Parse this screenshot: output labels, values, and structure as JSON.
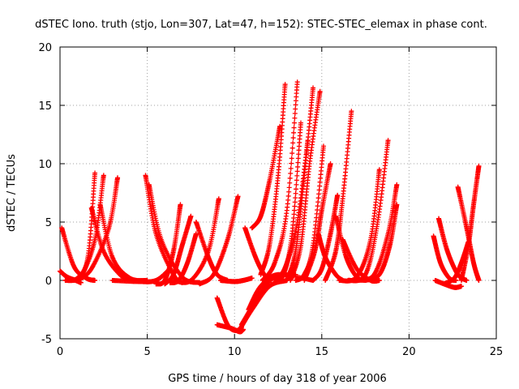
{
  "chart_data": {
    "type": "scatter",
    "title": "dSTEC Iono. truth (stjo, Lon=307, Lat=47, h=152): STEC-STEC_elemax in phase cont.",
    "xlabel": "GPS time / hours of day 318 of year 2006",
    "ylabel": "dSTEC  / TECUs",
    "xlim": [
      0,
      25
    ],
    "ylim": [
      -5,
      20
    ],
    "xticks": [
      "0",
      "5",
      "10",
      "15",
      "20",
      "25"
    ],
    "yticks": [
      "-5",
      "0",
      "5",
      "10",
      "15",
      "20"
    ],
    "grid": true,
    "marker": "plus",
    "color": "#ff0000",
    "series": [
      {
        "x": [
          0.0,
          0.4,
          0.9,
          1.2
        ],
        "y": [
          0.8,
          0.3,
          0.0,
          -0.2
        ]
      },
      {
        "x": [
          0.1,
          0.8,
          1.5,
          2.0
        ],
        "y": [
          4.5,
          1.2,
          0.2,
          0.0
        ]
      },
      {
        "x": [
          0.3,
          1.0,
          1.6,
          2.0
        ],
        "y": [
          0.0,
          0.2,
          2.0,
          9.2
        ]
      },
      {
        "x": [
          0.5,
          1.2,
          2.0,
          2.5
        ],
        "y": [
          0.0,
          0.4,
          3.5,
          9.0
        ]
      },
      {
        "x": [
          1.0,
          1.8,
          2.8,
          3.3
        ],
        "y": [
          0.0,
          1.0,
          4.5,
          8.8
        ]
      },
      {
        "x": [
          1.8,
          2.5,
          3.5,
          4.3
        ],
        "y": [
          6.2,
          2.5,
          0.4,
          0.0
        ]
      },
      {
        "x": [
          2.3,
          3.0,
          4.0,
          5.0
        ],
        "y": [
          6.5,
          2.0,
          0.2,
          0.0
        ]
      },
      {
        "x": [
          4.9,
          5.5,
          6.5,
          7.0
        ],
        "y": [
          9.0,
          4.0,
          0.5,
          -0.2
        ]
      },
      {
        "x": [
          5.1,
          5.8,
          7.0,
          8.0
        ],
        "y": [
          8.2,
          3.5,
          0.3,
          -0.2
        ]
      },
      {
        "x": [
          3.0,
          4.5,
          5.5,
          6.3
        ],
        "y": [
          0.0,
          -0.1,
          0.0,
          1.0
        ]
      },
      {
        "x": [
          5.5,
          6.0,
          6.5,
          6.9
        ],
        "y": [
          -0.3,
          0.0,
          2.5,
          6.5
        ]
      },
      {
        "x": [
          6.0,
          6.5,
          7.0,
          7.5
        ],
        "y": [
          -0.3,
          0.5,
          3.0,
          5.5
        ]
      },
      {
        "x": [
          6.3,
          6.8,
          7.3,
          7.8
        ],
        "y": [
          -0.2,
          0.0,
          1.5,
          4.0
        ]
      },
      {
        "x": [
          6.5,
          7.5,
          8.5,
          9.1
        ],
        "y": [
          0.0,
          0.0,
          2.5,
          7.0
        ]
      },
      {
        "x": [
          8.0,
          8.8,
          9.6,
          10.2
        ],
        "y": [
          -0.3,
          0.5,
          3.5,
          7.2
        ]
      },
      {
        "x": [
          7.8,
          8.5,
          9.0,
          9.6
        ],
        "y": [
          5.0,
          2.0,
          0.5,
          0.0
        ]
      },
      {
        "x": [
          9.2,
          10.0,
          10.5,
          11.0
        ],
        "y": [
          0.0,
          -0.1,
          0.0,
          0.2
        ]
      },
      {
        "x": [
          9.0,
          9.6,
          10.1,
          10.4
        ],
        "y": [
          -1.5,
          -3.8,
          -4.3,
          -4.0
        ]
      },
      {
        "x": [
          9.0,
          9.8,
          10.3,
          10.5
        ],
        "y": [
          -3.8,
          -4.1,
          -4.4,
          -4.2
        ]
      },
      {
        "x": [
          10.3,
          11.0,
          12.0,
          13.0
        ],
        "y": [
          -4.2,
          -2.5,
          -0.5,
          0.0
        ]
      },
      {
        "x": [
          10.4,
          11.2,
          12.2,
          13.5
        ],
        "y": [
          -3.8,
          -1.8,
          0.2,
          0.5
        ]
      },
      {
        "x": [
          10.8,
          11.5,
          12.5,
          14.5
        ],
        "y": [
          -2.5,
          -0.5,
          0.5,
          0.0
        ]
      },
      {
        "x": [
          10.6,
          11.2,
          11.7,
          12.1
        ],
        "y": [
          4.5,
          2.0,
          0.5,
          0.0
        ]
      },
      {
        "x": [
          11.0,
          11.5,
          12.0,
          12.6
        ],
        "y": [
          4.5,
          5.5,
          8.5,
          13.2
        ]
      },
      {
        "x": [
          11.5,
          12.0,
          12.5,
          12.9
        ],
        "y": [
          0.5,
          3.0,
          9.0,
          16.8
        ]
      },
      {
        "x": [
          11.6,
          12.3,
          13.0,
          13.6
        ],
        "y": [
          0.0,
          1.5,
          6.0,
          17.0
        ]
      },
      {
        "x": [
          12.3,
          12.8,
          13.3,
          13.8
        ],
        "y": [
          0.0,
          0.5,
          4.0,
          13.5
        ]
      },
      {
        "x": [
          12.5,
          13.0,
          13.6,
          14.2
        ],
        "y": [
          0.0,
          1.5,
          5.0,
          12.0
        ]
      },
      {
        "x": [
          13.0,
          13.5,
          14.0,
          14.5
        ],
        "y": [
          0.0,
          2.5,
          9.0,
          16.5
        ]
      },
      {
        "x": [
          13.2,
          13.8,
          14.3,
          14.9
        ],
        "y": [
          0.0,
          3.0,
          10.0,
          16.2
        ]
      },
      {
        "x": [
          13.5,
          14.0,
          14.5,
          15.1
        ],
        "y": [
          0.0,
          0.5,
          3.0,
          11.5
        ]
      },
      {
        "x": [
          14.0,
          14.6,
          15.0,
          15.5
        ],
        "y": [
          0.0,
          2.5,
          6.0,
          10.0
        ]
      },
      {
        "x": [
          14.5,
          15.0,
          15.5,
          15.9
        ],
        "y": [
          0.0,
          1.0,
          4.0,
          7.3
        ]
      },
      {
        "x": [
          14.8,
          15.2,
          15.8,
          16.2
        ],
        "y": [
          4.0,
          2.0,
          0.5,
          0.0
        ]
      },
      {
        "x": [
          15.2,
          15.8,
          16.2,
          16.7
        ],
        "y": [
          0.0,
          2.5,
          7.0,
          14.5
        ]
      },
      {
        "x": [
          15.8,
          16.4,
          17.0,
          17.5
        ],
        "y": [
          5.5,
          2.0,
          0.3,
          0.0
        ]
      },
      {
        "x": [
          16.0,
          17.0,
          17.8,
          18.3
        ],
        "y": [
          0.0,
          0.3,
          3.5,
          9.5
        ]
      },
      {
        "x": [
          16.5,
          17.5,
          18.2,
          18.8
        ],
        "y": [
          0.0,
          0.5,
          5.0,
          12.0
        ]
      },
      {
        "x": [
          16.2,
          17.0,
          17.8,
          18.3
        ],
        "y": [
          3.5,
          1.0,
          0.0,
          0.0
        ]
      },
      {
        "x": [
          17.0,
          18.0,
          18.8,
          19.3
        ],
        "y": [
          0.0,
          0.5,
          4.0,
          8.2
        ]
      },
      {
        "x": [
          17.5,
          18.3,
          18.9,
          19.3
        ],
        "y": [
          0.0,
          0.5,
          3.0,
          6.5
        ]
      },
      {
        "x": [
          21.4,
          21.8,
          22.3,
          22.7
        ],
        "y": [
          3.8,
          1.5,
          0.2,
          0.0
        ]
      },
      {
        "x": [
          21.7,
          22.2,
          22.8,
          23.3
        ],
        "y": [
          5.3,
          2.5,
          0.5,
          0.0
        ]
      },
      {
        "x": [
          21.5,
          22.0,
          22.6,
          23.0
        ],
        "y": [
          0.0,
          -0.3,
          -0.6,
          -0.5
        ]
      },
      {
        "x": [
          22.0,
          22.6,
          23.0,
          23.4
        ],
        "y": [
          -0.3,
          0.2,
          1.5,
          3.3
        ]
      },
      {
        "x": [
          22.8,
          23.3,
          23.7,
          24.0
        ],
        "y": [
          8.0,
          4.5,
          1.5,
          0.0
        ]
      },
      {
        "x": [
          23.0,
          23.4,
          23.7,
          24.0
        ],
        "y": [
          0.0,
          3.0,
          6.5,
          9.8
        ]
      }
    ]
  }
}
